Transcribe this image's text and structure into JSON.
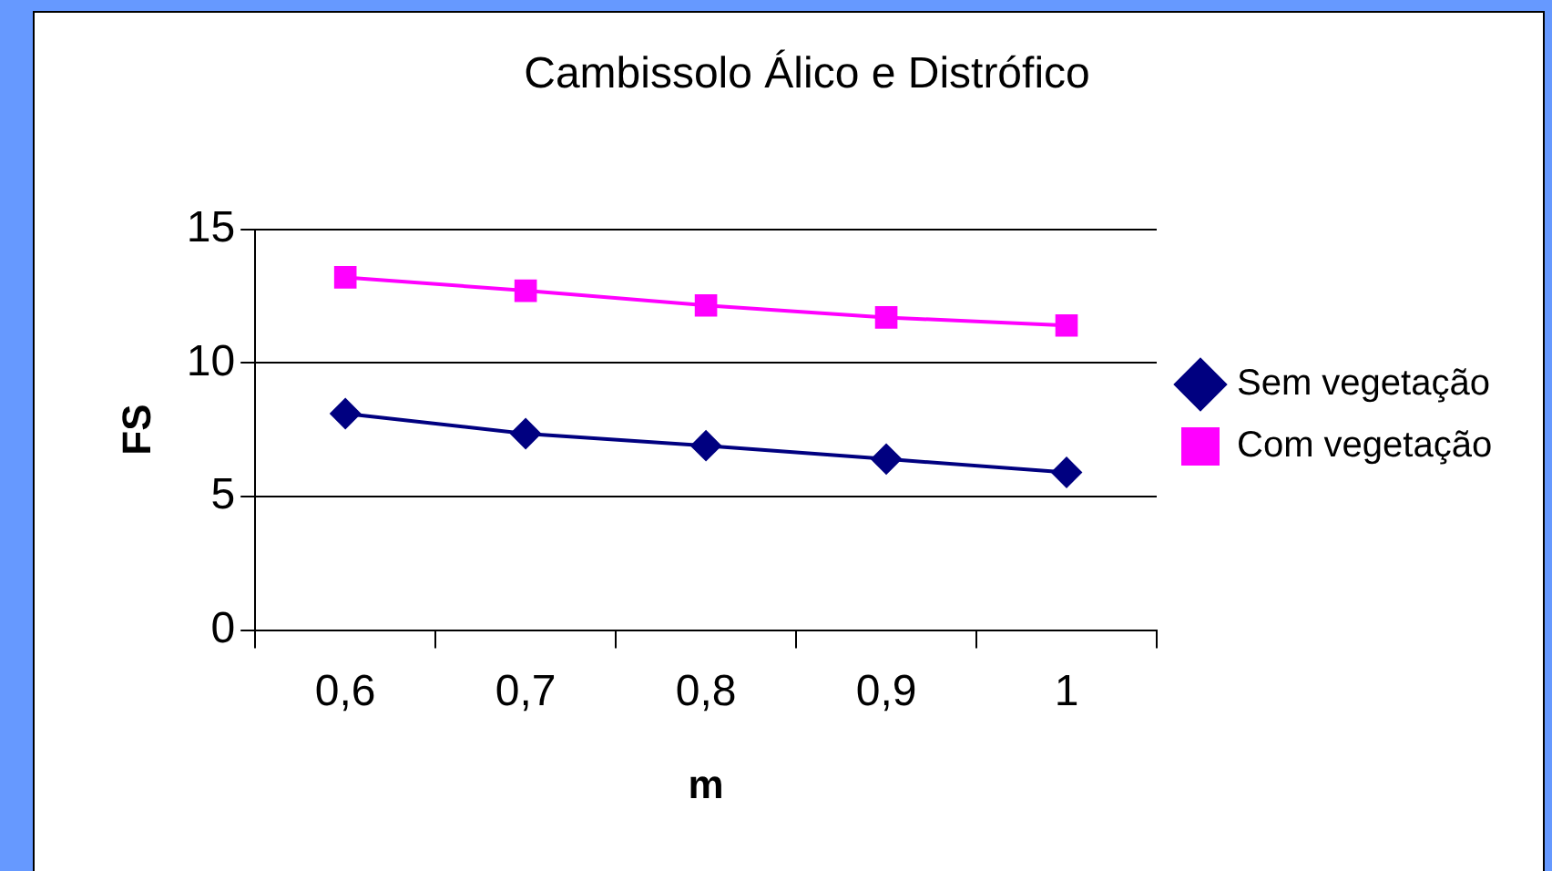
{
  "chart_data": {
    "type": "line",
    "title": "Cambissolo Álico e Distrófico",
    "xlabel": "m",
    "ylabel": "FS",
    "categories": [
      "0,6",
      "0,7",
      "0,8",
      "0,9",
      "1"
    ],
    "series": [
      {
        "name": "Sem vegetação",
        "color": "#000080",
        "marker": "diamond",
        "values": [
          8.1,
          7.35,
          6.9,
          6.4,
          5.9
        ]
      },
      {
        "name": "Com vegetação",
        "color": "#ff00ff",
        "marker": "square",
        "values": [
          13.2,
          12.7,
          12.15,
          11.7,
          11.4
        ]
      }
    ],
    "ylim": [
      0,
      15
    ],
    "yticks": [
      0,
      5,
      10,
      15
    ],
    "grid": "y",
    "legend": "right",
    "line_style": "solid"
  }
}
